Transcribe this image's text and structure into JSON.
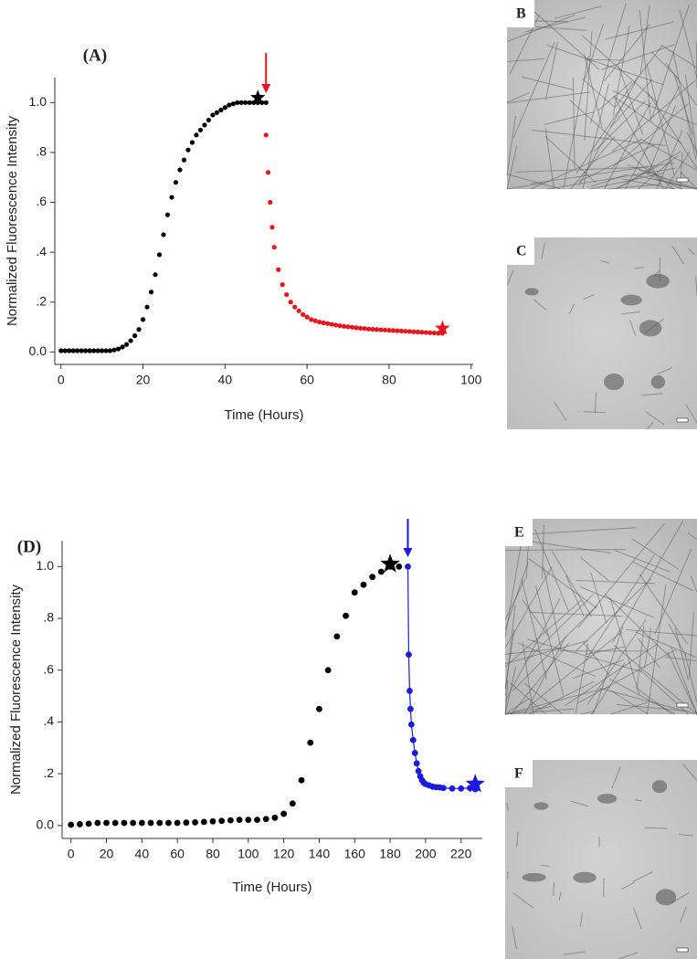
{
  "chart_data": [
    {
      "type": "scatter",
      "panel_label": "(A)",
      "x_label": "Time (Hours)",
      "y_label": "Normalized Fluorescence Intensity",
      "xlim": [
        -1.5,
        100.5
      ],
      "ylim": [
        -0.05,
        1.1
      ],
      "xticks": [
        0,
        20,
        40,
        60,
        80,
        100
      ],
      "yticks": [
        {
          "value": 0,
          "label": "0.0"
        },
        {
          "value": 0.2,
          "label": ".2"
        },
        {
          "value": 0.4,
          "label": ".4"
        },
        {
          "value": 0.6,
          "label": ".6"
        },
        {
          "value": 0.8,
          "label": ".8"
        },
        {
          "value": 1,
          "label": "1.0"
        }
      ],
      "series": [
        {
          "color": "#000000",
          "marker": "circle",
          "line": false,
          "x": [
            0,
            1,
            2,
            3,
            4,
            5,
            6,
            7,
            8,
            9,
            10,
            11,
            12,
            13,
            14,
            15,
            16,
            17,
            18,
            19,
            20,
            21,
            22,
            23,
            24,
            25,
            26,
            27,
            28,
            29,
            30,
            31,
            32,
            33,
            34,
            35,
            36,
            37,
            38,
            39,
            40,
            41,
            42,
            43,
            44,
            45,
            46,
            47,
            48,
            49,
            50
          ],
          "values": [
            0.005,
            0.005,
            0.005,
            0.005,
            0.005,
            0.005,
            0.005,
            0.005,
            0.005,
            0.005,
            0.005,
            0.005,
            0.005,
            0.008,
            0.012,
            0.02,
            0.03,
            0.045,
            0.065,
            0.09,
            0.13,
            0.18,
            0.24,
            0.31,
            0.39,
            0.47,
            0.55,
            0.62,
            0.68,
            0.73,
            0.77,
            0.81,
            0.84,
            0.87,
            0.89,
            0.91,
            0.93,
            0.95,
            0.96,
            0.97,
            0.98,
            0.99,
            0.995,
            1.0,
            1.0,
            1.0,
            1.0,
            1.0,
            1.0,
            1.0,
            1.0
          ]
        },
        {
          "color": "#e8161b",
          "marker": "circle",
          "line": false,
          "x": [
            50,
            50.5,
            51,
            51.5,
            52,
            53,
            54,
            55,
            56,
            57,
            58,
            59,
            60,
            61,
            62,
            63,
            64,
            65,
            66,
            67,
            68,
            69,
            70,
            71,
            72,
            73,
            74,
            75,
            76,
            77,
            78,
            79,
            80,
            81,
            82,
            83,
            84,
            85,
            86,
            87,
            88,
            89,
            90,
            91,
            92,
            93
          ],
          "values": [
            0.87,
            0.72,
            0.6,
            0.5,
            0.42,
            0.33,
            0.27,
            0.23,
            0.2,
            0.18,
            0.165,
            0.15,
            0.14,
            0.13,
            0.125,
            0.12,
            0.117,
            0.114,
            0.111,
            0.108,
            0.105,
            0.103,
            0.101,
            0.099,
            0.097,
            0.095,
            0.094,
            0.092,
            0.091,
            0.09,
            0.089,
            0.088,
            0.087,
            0.086,
            0.085,
            0.084,
            0.083,
            0.082,
            0.081,
            0.08,
            0.079,
            0.078,
            0.077,
            0.076,
            0.075,
            0.075
          ]
        },
        {
          "color": "#000000",
          "marker": "star",
          "line": false,
          "x": [
            48
          ],
          "values": [
            1.02
          ]
        },
        {
          "color": "#e8161b",
          "marker": "star",
          "line": false,
          "x": [
            93
          ],
          "values": [
            0.095
          ]
        }
      ],
      "arrows": [
        {
          "x": 50,
          "color": "#e8161b"
        }
      ]
    },
    {
      "type": "scatter",
      "panel_label": "(D)",
      "x_label": "Time (Hours)",
      "y_label": "Normalized Fluorescence Intensity",
      "xlim": [
        -5,
        232
      ],
      "ylim": [
        -0.05,
        1.1
      ],
      "xticks": [
        0,
        20,
        40,
        60,
        80,
        100,
        120,
        140,
        160,
        180,
        200,
        220
      ],
      "yticks": [
        {
          "value": 0,
          "label": "0.0"
        },
        {
          "value": 0.2,
          "label": ".2"
        },
        {
          "value": 0.4,
          "label": ".4"
        },
        {
          "value": 0.6,
          "label": ".6"
        },
        {
          "value": 0.8,
          "label": ".8"
        },
        {
          "value": 1,
          "label": "1.0"
        }
      ],
      "series": [
        {
          "color": "#000000",
          "marker": "circle",
          "line": false,
          "x": [
            0,
            5,
            10,
            15,
            20,
            25,
            30,
            35,
            40,
            45,
            50,
            55,
            60,
            65,
            70,
            75,
            80,
            85,
            90,
            95,
            100,
            105,
            110,
            115,
            120,
            125,
            130,
            135,
            140,
            145,
            150,
            155,
            160,
            165,
            170,
            175,
            180,
            185
          ],
          "values": [
            0.003,
            0.005,
            0.007,
            0.01,
            0.01,
            0.01,
            0.01,
            0.01,
            0.01,
            0.01,
            0.01,
            0.01,
            0.01,
            0.011,
            0.012,
            0.014,
            0.016,
            0.018,
            0.02,
            0.022,
            0.022,
            0.022,
            0.025,
            0.03,
            0.045,
            0.085,
            0.175,
            0.32,
            0.45,
            0.6,
            0.73,
            0.81,
            0.9,
            0.93,
            0.96,
            0.98,
            1.0,
            1.0
          ]
        },
        {
          "color": "#1a1ae0",
          "marker": "circle",
          "line": true,
          "x": [
            190,
            190.5,
            191,
            191.5,
            192,
            193,
            194,
            195,
            196,
            197,
            198,
            199,
            200,
            202,
            204,
            206,
            208,
            210,
            215,
            220,
            225,
            228
          ],
          "values": [
            1.0,
            0.66,
            0.52,
            0.45,
            0.39,
            0.33,
            0.28,
            0.24,
            0.21,
            0.19,
            0.175,
            0.165,
            0.16,
            0.155,
            0.15,
            0.148,
            0.147,
            0.145,
            0.143,
            0.143,
            0.145,
            0.14
          ]
        },
        {
          "color": "#000000",
          "marker": "star",
          "line": false,
          "x": [
            180
          ],
          "values": [
            1.01
          ]
        },
        {
          "color": "#1a1ae0",
          "marker": "star",
          "line": false,
          "x": [
            228
          ],
          "values": [
            0.16
          ]
        }
      ],
      "arrows": [
        {
          "x": 190,
          "color": "#1a1ae0"
        }
      ]
    }
  ],
  "images": [
    {
      "label": "B"
    },
    {
      "label": "C"
    },
    {
      "label": "E"
    },
    {
      "label": "F"
    }
  ]
}
